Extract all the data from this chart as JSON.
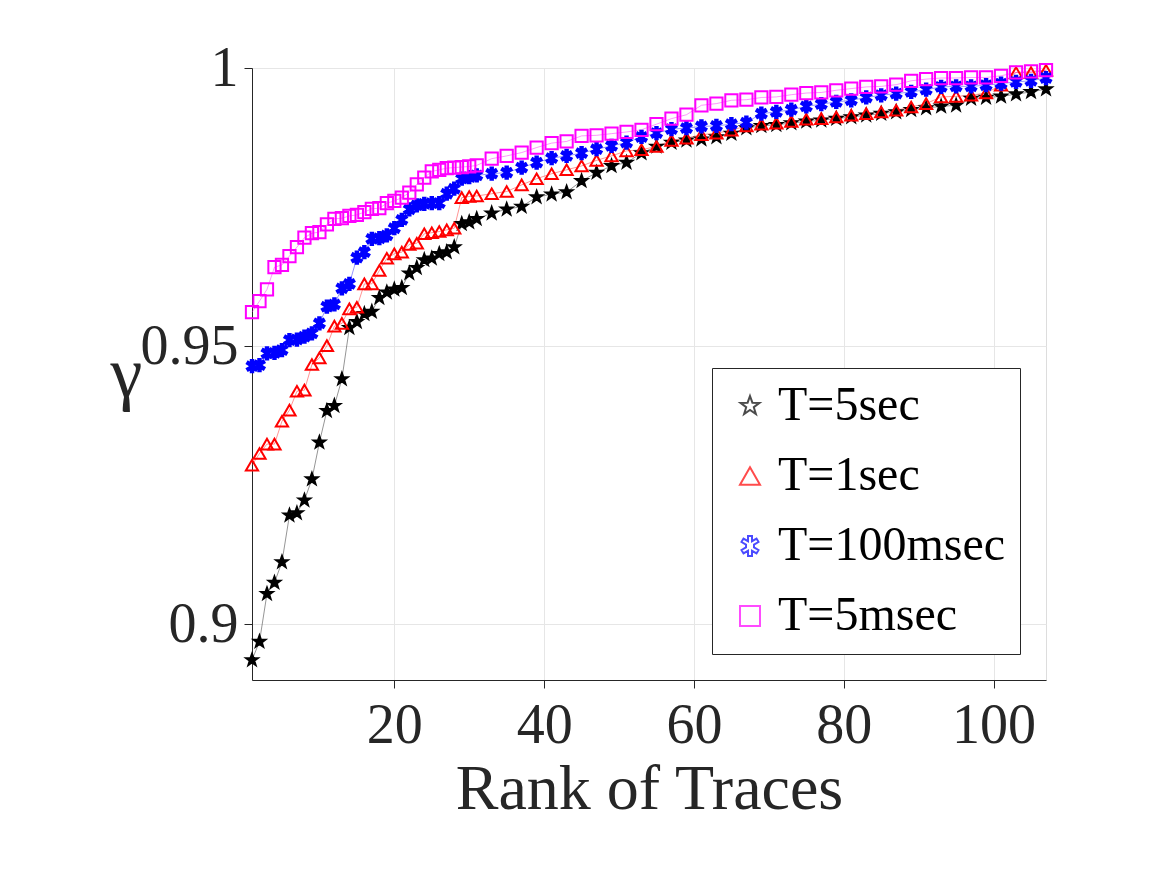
{
  "chart_data": {
    "type": "line",
    "xlabel": "Rank of Traces",
    "ylabel": "γ",
    "x": [
      1,
      2,
      3,
      4,
      5,
      6,
      7,
      8,
      9,
      10,
      11,
      12,
      13,
      14,
      15,
      16,
      17,
      18,
      19,
      20,
      21,
      22,
      23,
      24,
      25,
      26,
      27,
      28,
      29,
      30,
      31,
      33,
      35,
      37,
      39,
      41,
      43,
      45,
      47,
      49,
      51,
      53,
      55,
      57,
      59,
      61,
      63,
      65,
      67,
      69,
      71,
      73,
      75,
      77,
      79,
      81,
      83,
      85,
      87,
      89,
      91,
      93,
      95,
      97,
      99,
      101,
      103,
      105,
      107
    ],
    "xlim": [
      1,
      107
    ],
    "xticks": [
      20,
      40,
      60,
      80,
      100
    ],
    "ylim": [
      0.89,
      1
    ],
    "yticks": [
      0.9,
      0.95,
      1
    ],
    "grid": true,
    "legend": "bottom right",
    "series": [
      {
        "name": "T=5sec",
        "color": "#000000",
        "marker": "star",
        "values": [
          0.8936,
          0.8969,
          0.9055,
          0.9075,
          0.9112,
          0.9196,
          0.92,
          0.9223,
          0.9261,
          0.9327,
          0.9384,
          0.9393,
          0.9441,
          0.9533,
          0.9544,
          0.9558,
          0.9562,
          0.9587,
          0.9597,
          0.9602,
          0.9605,
          0.9631,
          0.9641,
          0.9655,
          0.9658,
          0.9666,
          0.9669,
          0.9678,
          0.972,
          0.9723,
          0.9729,
          0.9739,
          0.9746,
          0.9751,
          0.9768,
          0.9773,
          0.9777,
          0.9797,
          0.9812,
          0.9824,
          0.983,
          0.9847,
          0.9859,
          0.9866,
          0.987,
          0.9872,
          0.9876,
          0.9882,
          0.9892,
          0.9896,
          0.9898,
          0.9901,
          0.9904,
          0.9906,
          0.9909,
          0.9912,
          0.9915,
          0.9918,
          0.9921,
          0.9925,
          0.9928,
          0.9931,
          0.9933,
          0.9945,
          0.9947,
          0.9949,
          0.9953,
          0.9957,
          0.9962
        ]
      },
      {
        "name": "T=1sec",
        "color": "#ff0000",
        "marker": "triangle",
        "values": [
          0.9286,
          0.9307,
          0.9324,
          0.9324,
          0.9365,
          0.9385,
          0.9419,
          0.9421,
          0.9467,
          0.9479,
          0.9501,
          0.9536,
          0.9541,
          0.9567,
          0.957,
          0.9612,
          0.9612,
          0.9636,
          0.9658,
          0.9666,
          0.9669,
          0.9683,
          0.9685,
          0.9702,
          0.9704,
          0.9706,
          0.9709,
          0.9712,
          0.9767,
          0.9769,
          0.977,
          0.9774,
          0.9778,
          0.979,
          0.9801,
          0.981,
          0.9817,
          0.9824,
          0.9834,
          0.9842,
          0.9851,
          0.9853,
          0.9859,
          0.987,
          0.9874,
          0.988,
          0.9883,
          0.9888,
          0.9896,
          0.9899,
          0.9901,
          0.9904,
          0.9908,
          0.9909,
          0.9912,
          0.9915,
          0.9918,
          0.9921,
          0.9924,
          0.993,
          0.9936,
          0.9948,
          0.9949,
          0.9951,
          0.9955,
          0.9969,
          0.9992,
          0.9992,
          0.9996
        ]
      },
      {
        "name": "T=100msec",
        "color": "#0000ff",
        "marker": "cross",
        "values": [
          0.9464,
          0.9466,
          0.9487,
          0.9488,
          0.9493,
          0.9511,
          0.9512,
          0.9517,
          0.9523,
          0.9541,
          0.9571,
          0.9575,
          0.9604,
          0.9612,
          0.9659,
          0.9669,
          0.9693,
          0.9694,
          0.9699,
          0.9712,
          0.9727,
          0.9746,
          0.9753,
          0.9756,
          0.9757,
          0.9757,
          0.9774,
          0.9783,
          0.9801,
          0.9804,
          0.9807,
          0.981,
          0.9812,
          0.9821,
          0.983,
          0.9838,
          0.9842,
          0.9847,
          0.9854,
          0.986,
          0.9866,
          0.9876,
          0.9883,
          0.989,
          0.9892,
          0.9895,
          0.9896,
          0.9899,
          0.9902,
          0.9918,
          0.9921,
          0.9925,
          0.9931,
          0.9935,
          0.9939,
          0.9942,
          0.9947,
          0.9951,
          0.9954,
          0.9957,
          0.9961,
          0.9966,
          0.9967,
          0.9967,
          0.9969,
          0.9972,
          0.9975,
          0.9977,
          0.9982
        ]
      },
      {
        "name": "T=5msec",
        "color": "#ff00ff",
        "marker": "square",
        "values": [
          0.9561,
          0.9581,
          0.9602,
          0.9642,
          0.9646,
          0.9662,
          0.9678,
          0.9695,
          0.9703,
          0.9705,
          0.9719,
          0.9729,
          0.973,
          0.9734,
          0.9736,
          0.9741,
          0.9747,
          0.9748,
          0.9757,
          0.9761,
          0.9767,
          0.9776,
          0.9791,
          0.9803,
          0.9814,
          0.9817,
          0.982,
          0.9821,
          0.9822,
          0.9823,
          0.9825,
          0.9837,
          0.9842,
          0.9848,
          0.9857,
          0.9865,
          0.9868,
          0.9878,
          0.9879,
          0.9882,
          0.9885,
          0.9889,
          0.9899,
          0.9909,
          0.9916,
          0.9933,
          0.9936,
          0.9942,
          0.9943,
          0.9947,
          0.9948,
          0.9952,
          0.9955,
          0.9956,
          0.996,
          0.9963,
          0.9966,
          0.9967,
          0.997,
          0.9977,
          0.998,
          0.9982,
          0.9982,
          0.9983,
          0.9983,
          0.9986,
          0.9992,
          0.9994,
          0.9996
        ]
      }
    ]
  }
}
